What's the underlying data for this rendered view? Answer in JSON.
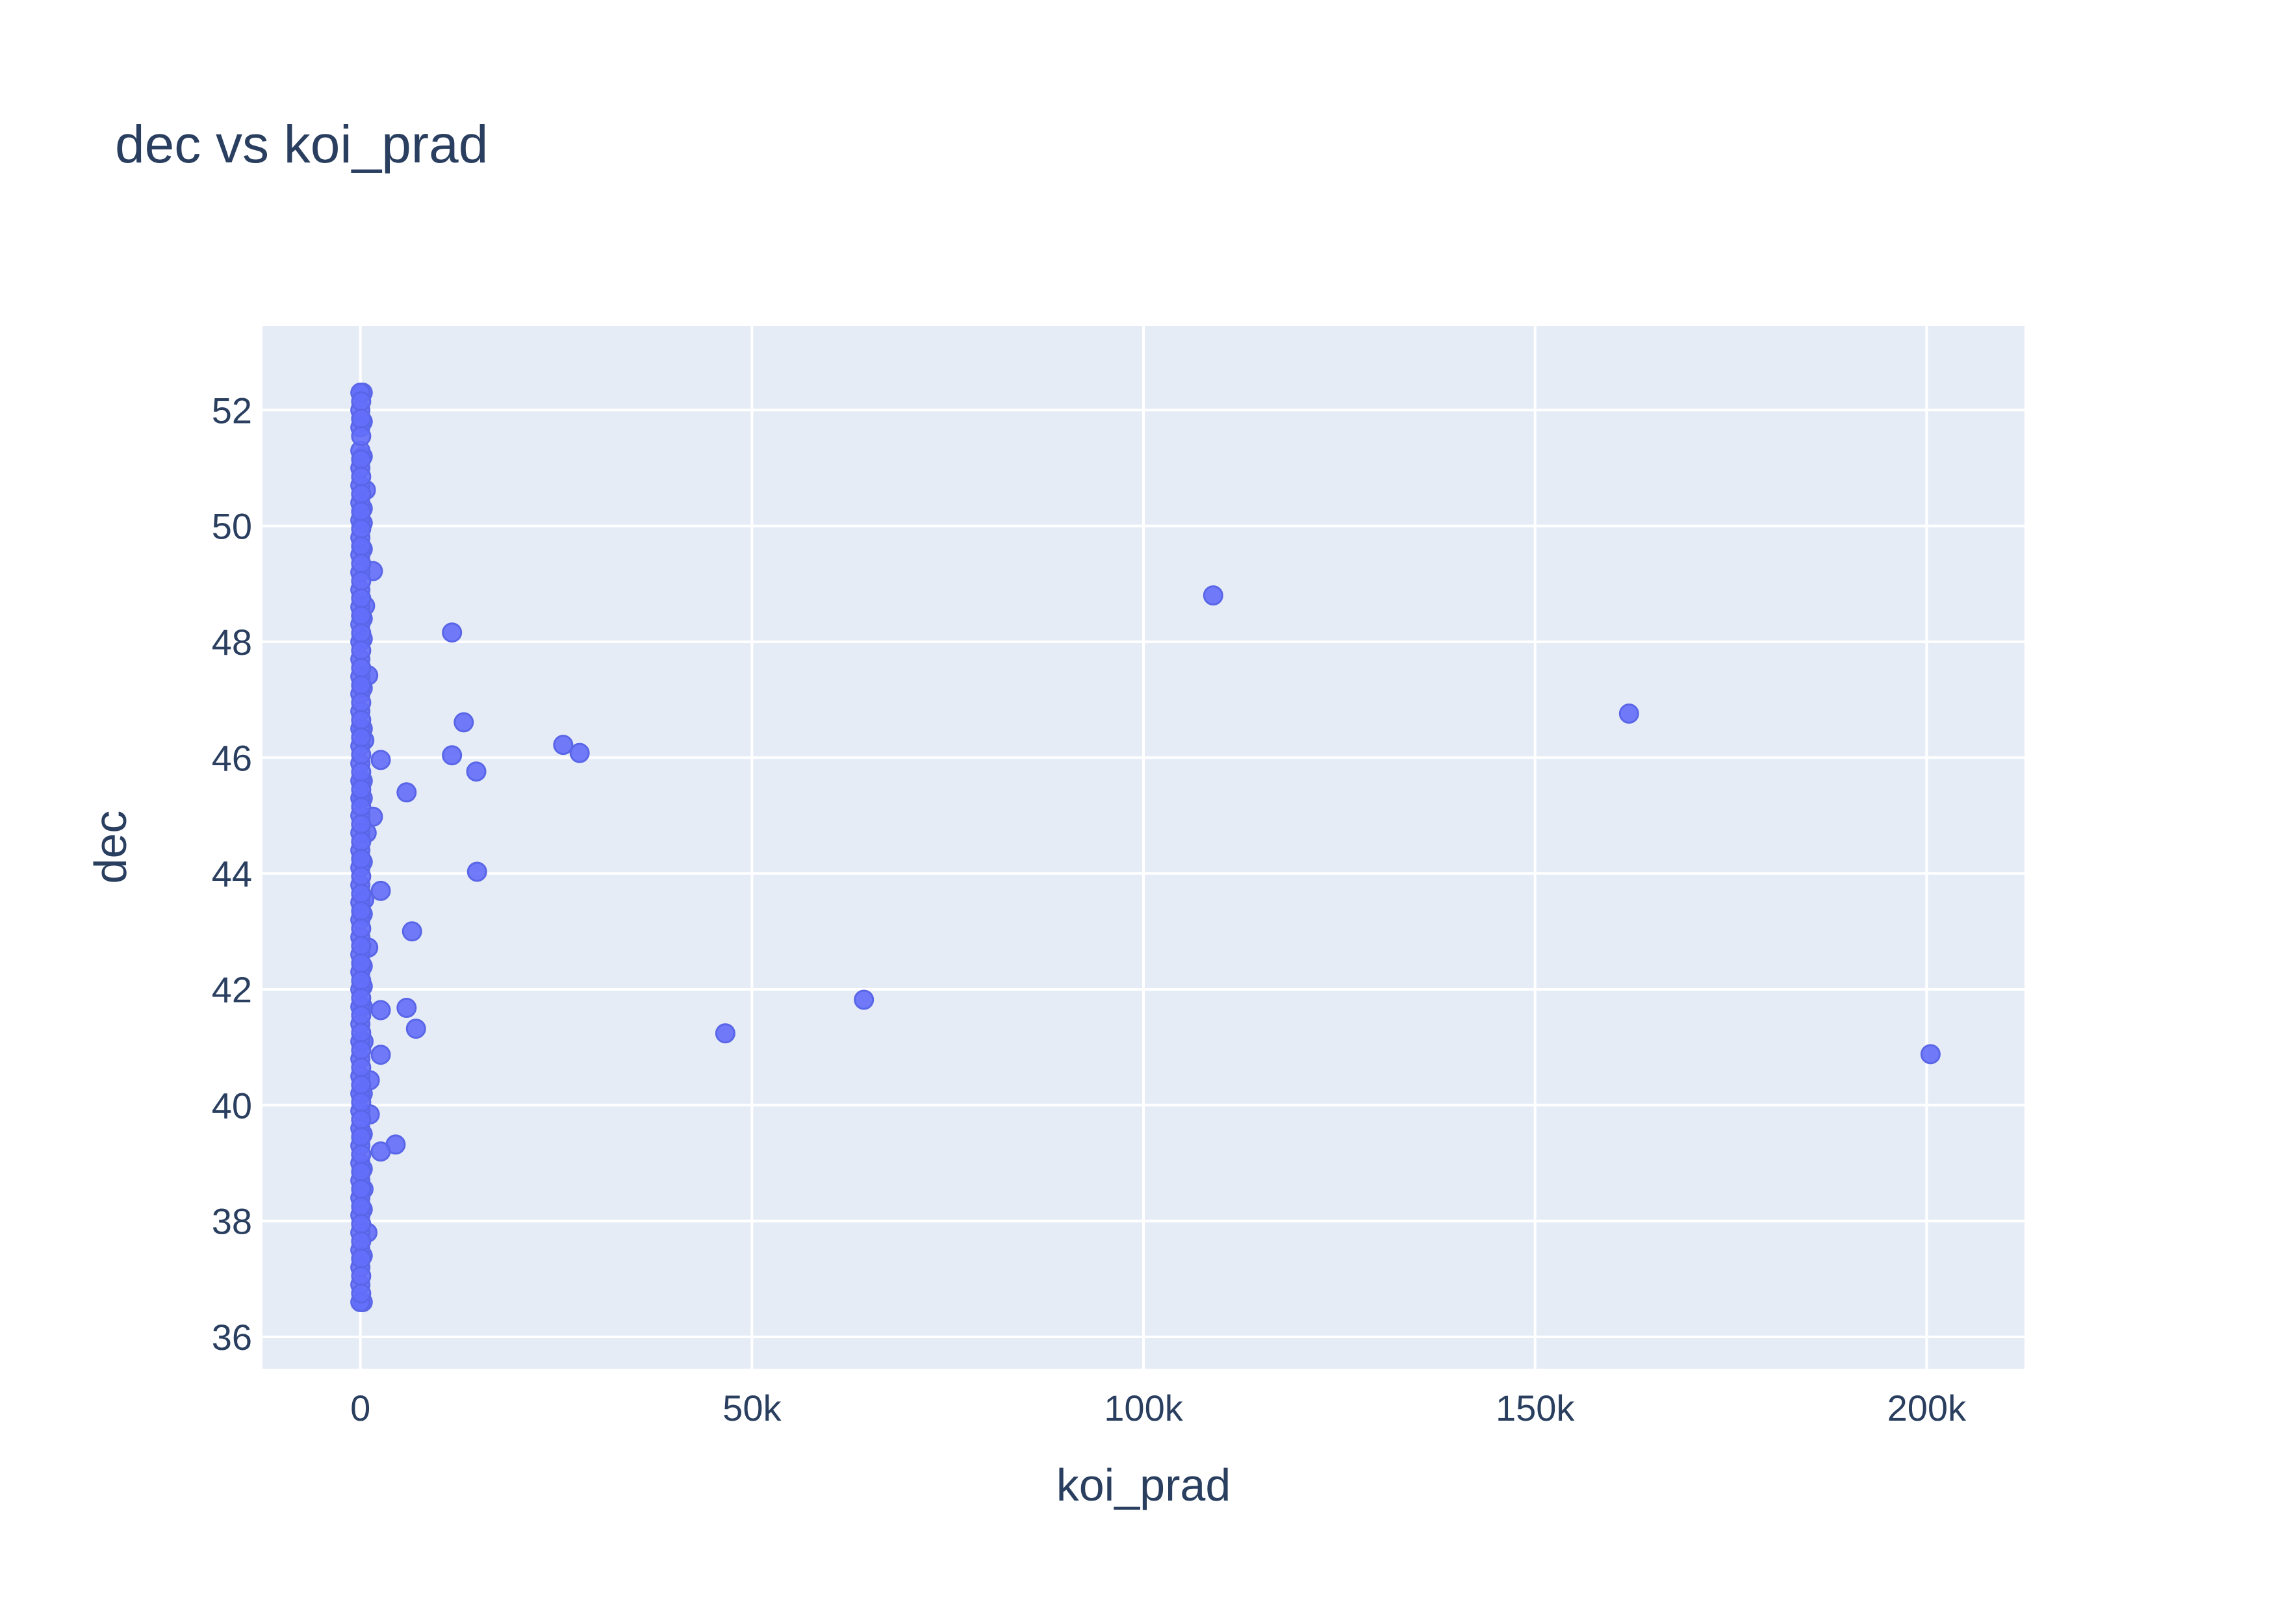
{
  "chart_data": {
    "type": "scatter",
    "title": "dec vs koi_prad",
    "xlabel": "koi_prad",
    "ylabel": "dec",
    "xlim": [
      -12500,
      212500
    ],
    "ylim": [
      35.45,
      53.45
    ],
    "x_ticks": [
      0,
      50000,
      100000,
      150000,
      200000
    ],
    "x_tick_labels": [
      "0",
      "50k",
      "100k",
      "150k",
      "200k"
    ],
    "y_ticks": [
      36,
      38,
      40,
      42,
      44,
      46,
      48,
      50,
      52
    ],
    "y_tick_labels": [
      "36",
      "38",
      "40",
      "42",
      "44",
      "46",
      "48",
      "50",
      "52"
    ],
    "grid": true,
    "plot_background": "#e5ecf6",
    "grid_color": "#ffffff",
    "marker_color": "#636efa",
    "series": [
      {
        "points": [
          [
            108900,
            48.8
          ],
          [
            162000,
            46.76
          ],
          [
            200500,
            40.88
          ],
          [
            64300,
            41.82
          ],
          [
            46600,
            41.24
          ],
          [
            11700,
            48.16
          ],
          [
            13200,
            46.61
          ],
          [
            11700,
            46.04
          ],
          [
            14800,
            45.76
          ],
          [
            25900,
            46.22
          ],
          [
            28000,
            46.08
          ],
          [
            14900,
            44.03
          ],
          [
            6600,
            43.0
          ],
          [
            5900,
            45.4
          ],
          [
            5900,
            41.68
          ],
          [
            7100,
            41.32
          ],
          [
            4500,
            39.32
          ],
          [
            2600,
            39.2
          ],
          [
            2600,
            40.87
          ],
          [
            2600,
            41.64
          ],
          [
            2600,
            43.7
          ],
          [
            2600,
            45.96
          ],
          [
            1600,
            44.98
          ],
          [
            1600,
            49.22
          ],
          [
            1200,
            39.84
          ],
          [
            1200,
            40.43
          ],
          [
            1000,
            42.72
          ],
          [
            1000,
            47.42
          ],
          [
            900,
            37.8
          ],
          [
            800,
            44.7
          ],
          [
            700,
            50.62
          ],
          [
            600,
            48.62
          ],
          [
            500,
            46.3
          ],
          [
            500,
            43.55
          ],
          [
            400,
            41.1
          ],
          [
            400,
            38.55
          ],
          [
            300,
            52.3
          ],
          [
            300,
            51.8
          ],
          [
            300,
            51.2
          ],
          [
            300,
            50.3
          ],
          [
            300,
            50.05
          ],
          [
            300,
            49.6
          ],
          [
            300,
            48.4
          ],
          [
            300,
            48.05
          ],
          [
            300,
            47.2
          ],
          [
            300,
            46.5
          ],
          [
            300,
            45.6
          ],
          [
            300,
            45.3
          ],
          [
            300,
            44.2
          ],
          [
            300,
            43.3
          ],
          [
            300,
            42.4
          ],
          [
            300,
            42.05
          ],
          [
            300,
            41.7
          ],
          [
            300,
            40.2
          ],
          [
            300,
            39.5
          ],
          [
            300,
            38.9
          ],
          [
            300,
            38.2
          ],
          [
            300,
            37.4
          ],
          [
            300,
            36.6
          ],
          [
            0,
            52.3
          ],
          [
            0,
            52.0
          ],
          [
            0,
            51.7
          ],
          [
            0,
            51.3
          ],
          [
            0,
            51.0
          ],
          [
            0,
            50.7
          ],
          [
            0,
            50.4
          ],
          [
            0,
            50.1
          ],
          [
            0,
            49.8
          ],
          [
            0,
            49.5
          ],
          [
            0,
            49.2
          ],
          [
            0,
            48.9
          ],
          [
            0,
            48.6
          ],
          [
            0,
            48.3
          ],
          [
            0,
            48.0
          ],
          [
            0,
            47.7
          ],
          [
            0,
            47.4
          ],
          [
            0,
            47.1
          ],
          [
            0,
            46.8
          ],
          [
            0,
            46.5
          ],
          [
            0,
            46.2
          ],
          [
            0,
            45.9
          ],
          [
            0,
            45.6
          ],
          [
            0,
            45.3
          ],
          [
            0,
            45.0
          ],
          [
            0,
            44.7
          ],
          [
            0,
            44.4
          ],
          [
            0,
            44.1
          ],
          [
            0,
            43.8
          ],
          [
            0,
            43.5
          ],
          [
            0,
            43.2
          ],
          [
            0,
            42.9
          ],
          [
            0,
            42.6
          ],
          [
            0,
            42.3
          ],
          [
            0,
            42.0
          ],
          [
            0,
            41.7
          ],
          [
            0,
            41.4
          ],
          [
            0,
            41.1
          ],
          [
            0,
            40.8
          ],
          [
            0,
            40.5
          ],
          [
            0,
            40.2
          ],
          [
            0,
            39.9
          ],
          [
            0,
            39.6
          ],
          [
            0,
            39.3
          ],
          [
            0,
            39.0
          ],
          [
            0,
            38.7
          ],
          [
            0,
            38.4
          ],
          [
            0,
            38.1
          ],
          [
            0,
            37.8
          ],
          [
            0,
            37.5
          ],
          [
            0,
            37.2
          ],
          [
            0,
            36.9
          ],
          [
            0,
            36.6
          ],
          [
            100,
            52.15
          ],
          [
            100,
            51.85
          ],
          [
            100,
            51.55
          ],
          [
            100,
            51.15
          ],
          [
            100,
            50.85
          ],
          [
            100,
            50.55
          ],
          [
            100,
            50.25
          ],
          [
            100,
            49.95
          ],
          [
            100,
            49.65
          ],
          [
            100,
            49.35
          ],
          [
            100,
            49.05
          ],
          [
            100,
            48.75
          ],
          [
            100,
            48.45
          ],
          [
            100,
            48.15
          ],
          [
            100,
            47.85
          ],
          [
            100,
            47.55
          ],
          [
            100,
            47.25
          ],
          [
            100,
            46.95
          ],
          [
            100,
            46.65
          ],
          [
            100,
            46.35
          ],
          [
            100,
            46.05
          ],
          [
            100,
            45.75
          ],
          [
            100,
            45.45
          ],
          [
            100,
            45.15
          ],
          [
            100,
            44.85
          ],
          [
            100,
            44.55
          ],
          [
            100,
            44.25
          ],
          [
            100,
            43.95
          ],
          [
            100,
            43.65
          ],
          [
            100,
            43.35
          ],
          [
            100,
            43.05
          ],
          [
            100,
            42.75
          ],
          [
            100,
            42.45
          ],
          [
            100,
            42.15
          ],
          [
            100,
            41.85
          ],
          [
            100,
            41.55
          ],
          [
            100,
            41.25
          ],
          [
            100,
            40.95
          ],
          [
            100,
            40.65
          ],
          [
            100,
            40.35
          ],
          [
            100,
            40.05
          ],
          [
            100,
            39.75
          ],
          [
            100,
            39.45
          ],
          [
            100,
            39.15
          ],
          [
            100,
            38.85
          ],
          [
            100,
            38.55
          ],
          [
            100,
            38.25
          ],
          [
            100,
            37.95
          ],
          [
            100,
            37.65
          ],
          [
            100,
            37.35
          ],
          [
            100,
            37.05
          ],
          [
            100,
            36.75
          ]
        ]
      }
    ]
  }
}
